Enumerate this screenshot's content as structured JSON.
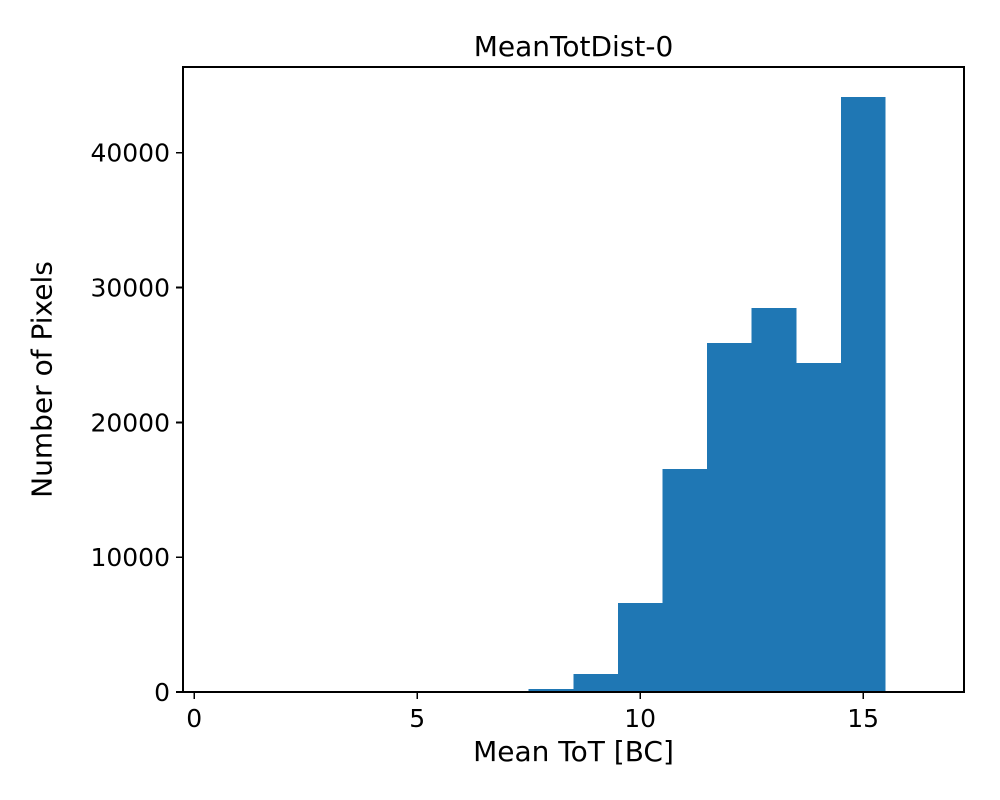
{
  "figure": {
    "background": "#ffffff",
    "foreground": "#000000"
  },
  "chart_data": {
    "type": "bar",
    "subtype": "histogram",
    "title": "MeanTotDist-0",
    "xlabel": "Mean ToT [BC]",
    "ylabel": "Number of Pixels",
    "bar_color": "#1f77b4",
    "bin_edges": [
      7.5,
      8.5,
      9.5,
      10.5,
      11.5,
      12.5,
      13.5,
      14.5,
      15.5
    ],
    "counts": [
      220,
      1330,
      6600,
      16550,
      25900,
      28500,
      24420,
      44150
    ],
    "xlim": [
      -0.25,
      17.26
    ],
    "ylim": [
      0,
      46360
    ],
    "xticks": [
      0,
      5,
      10,
      15
    ],
    "yticks": [
      0,
      10000,
      20000,
      30000,
      40000
    ],
    "grid": false,
    "legend_position": "none"
  }
}
